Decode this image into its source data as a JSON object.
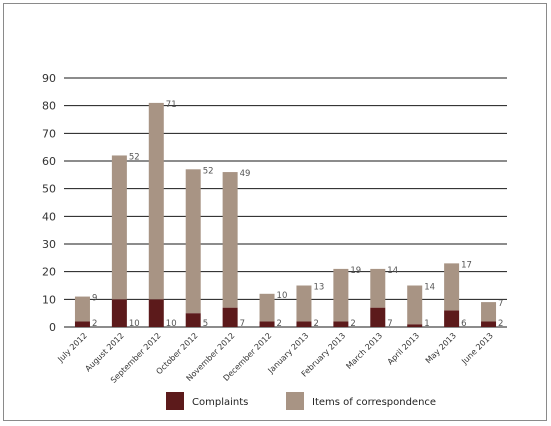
{
  "chart_data": {
    "type": "bar",
    "stacked": true,
    "categories": [
      "July 2012",
      "August 2012",
      "September 2012",
      "October 2012",
      "November 2012",
      "December 2012",
      "January 2013",
      "February 2013",
      "March 2013",
      "April 2013",
      "May 2013",
      "June 2013"
    ],
    "series": [
      {
        "name": "Complaints",
        "values": [
          2,
          10,
          10,
          5,
          7,
          2,
          2,
          2,
          7,
          1,
          6,
          2
        ],
        "color": "#5c1a1b"
      },
      {
        "name": "Items of correspondence",
        "values": [
          9,
          52,
          71,
          52,
          49,
          10,
          13,
          19,
          14,
          14,
          17,
          7
        ],
        "color": "#a89484"
      }
    ],
    "y_ticks": [
      "0",
      "10",
      "20",
      "30",
      "40",
      "50",
      "60",
      "70",
      "80",
      "90"
    ],
    "ylim": [
      0,
      90
    ],
    "grid": true,
    "legend_position": "bottom-center"
  }
}
